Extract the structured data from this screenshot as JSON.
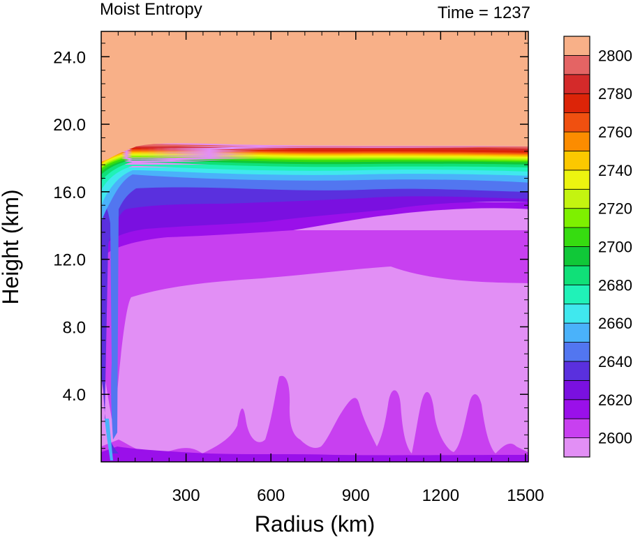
{
  "chart_data": {
    "type": "heatmap",
    "title": "Moist Entropy",
    "subtitle": "Time = 1237",
    "xlabel": "Radius (km)",
    "ylabel": "Height (km)",
    "xlim": [
      0,
      1510
    ],
    "ylim": [
      0,
      25.5
    ],
    "xticks": [
      300,
      600,
      900,
      1200,
      1500
    ],
    "xtick_labels": [
      "300",
      "600",
      "900",
      "1200",
      "1500"
    ],
    "yticks": [
      4,
      8,
      12,
      16,
      20,
      24
    ],
    "ytick_labels": [
      "4.0",
      "8.0",
      "12.0",
      "16.0",
      "20.0",
      "24.0"
    ],
    "grid": false,
    "legend": "colorbar-right",
    "colorbar": {
      "levels": [
        2600,
        2610,
        2620,
        2630,
        2640,
        2650,
        2660,
        2670,
        2680,
        2690,
        2700,
        2710,
        2720,
        2730,
        2740,
        2750,
        2760,
        2770,
        2780,
        2790,
        2800
      ],
      "labels": [
        "2600",
        "2620",
        "2640",
        "2660",
        "2680",
        "2700",
        "2720",
        "2740",
        "2760",
        "2780",
        "2800"
      ],
      "label_values": [
        2600,
        2620,
        2640,
        2660,
        2680,
        2700,
        2720,
        2740,
        2760,
        2780,
        2800
      ],
      "colors": [
        "#e28ff5",
        "#c840f0",
        "#9a10ea",
        "#7a10e0",
        "#5a30de",
        "#5276f0",
        "#4ab2fa",
        "#40e8ee",
        "#20f2b8",
        "#10e078",
        "#10c838",
        "#36dc10",
        "#7ef000",
        "#c4f410",
        "#ecf410",
        "#fcc800",
        "#fc8c00",
        "#f05010",
        "#dc2408",
        "#d42a2a",
        "#e46464",
        "#f8b088"
      ]
    },
    "values_by_layer": [
      {
        "level": "above 2800",
        "height_range_km": [
          18.6,
          25.5
        ],
        "radius_range_km": [
          0,
          1510
        ]
      },
      {
        "level": "2700-2800",
        "height_range_km": [
          16.8,
          18.6
        ]
      },
      {
        "level": "2620-2640",
        "height_range_km": [
          13.5,
          16.0
        ]
      },
      {
        "level": "2600-2610",
        "height_range_km": [
          0.6,
          11.5
        ]
      },
      {
        "level": "2610-2620",
        "height_range_km": [
          0.2,
          13.5
        ]
      }
    ]
  }
}
